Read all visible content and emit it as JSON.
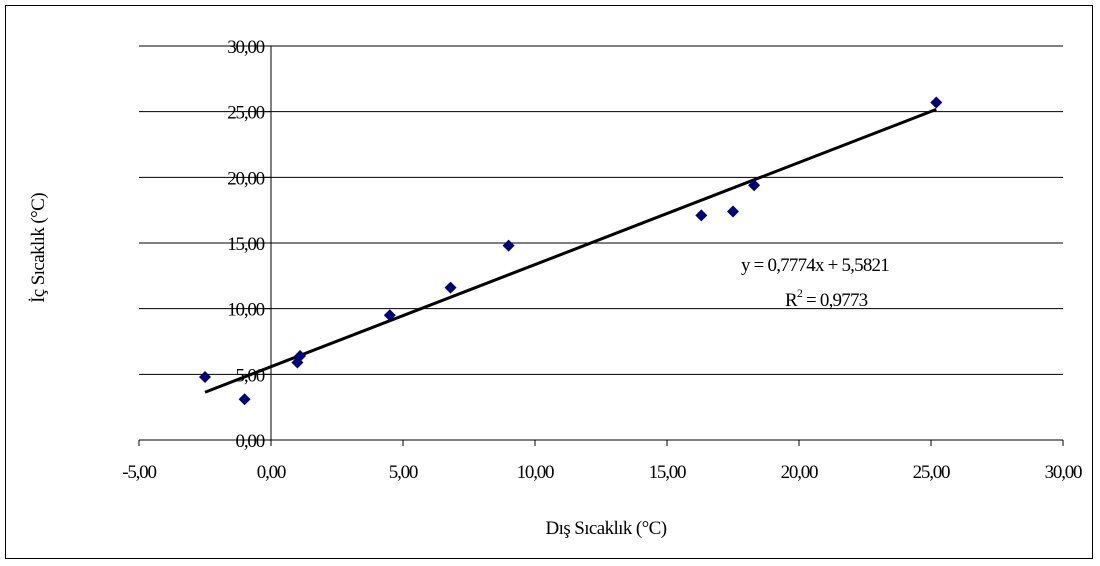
{
  "chart_data": {
    "type": "scatter",
    "xlabel": "Dış Sıcaklık (°C)",
    "ylabel": "İç Sıcaklık (°C)",
    "xlim": [
      -5,
      30
    ],
    "ylim": [
      0,
      30
    ],
    "x_ticks": [
      -5,
      0,
      5,
      10,
      15,
      20,
      25,
      30
    ],
    "y_ticks": [
      0,
      5,
      10,
      15,
      20,
      25,
      30
    ],
    "x_tick_labels": [
      "-5,00",
      "0,00",
      "5,00",
      "10,00",
      "15,00",
      "20,00",
      "25,00",
      "30,00"
    ],
    "y_tick_labels": [
      "0,00",
      "5,00",
      "10,00",
      "15,00",
      "20,00",
      "25,00",
      "30,00"
    ],
    "grid": "horizontal",
    "series": [
      {
        "marker": "diamond",
        "color": "#00007f",
        "x": [
          -2.5,
          -1.0,
          1.0,
          1.1,
          4.5,
          6.8,
          9.0,
          16.3,
          17.5,
          18.3,
          25.2
        ],
        "y": [
          4.8,
          3.1,
          5.9,
          6.4,
          9.5,
          11.6,
          14.8,
          17.1,
          17.4,
          19.4,
          25.7
        ]
      }
    ],
    "trendline": {
      "type": "linear",
      "slope": 0.7774,
      "intercept": 5.5821,
      "x_range": [
        -2.5,
        25.2
      ],
      "color": "#000000",
      "equation_label": "y = 0,7774x + 5,5821",
      "r2_prefix": "R",
      "r2_exponent": "2",
      "r2_value": " = 0,9773"
    }
  }
}
